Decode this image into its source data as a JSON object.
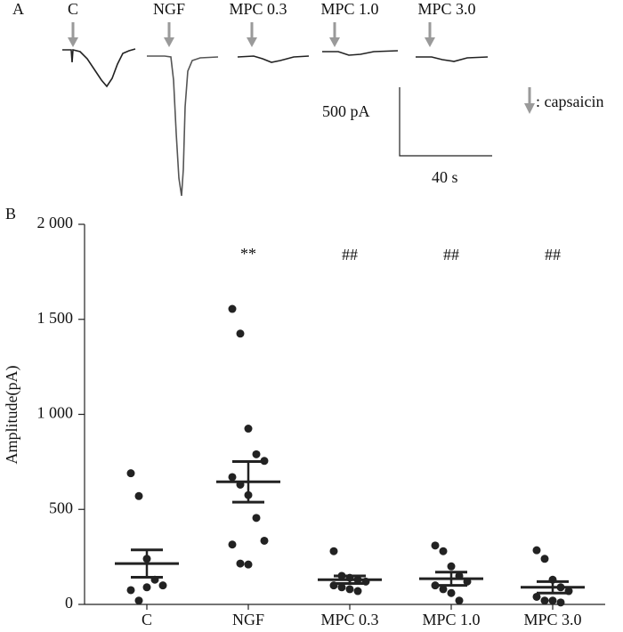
{
  "panel_a": {
    "label": "A",
    "traces": [
      "C",
      "NGF",
      "MPC 0.3",
      "MPC 1.0",
      "MPC 3.0"
    ],
    "scale_y": "500 pA",
    "scale_x": "40 s",
    "legend": ": capsaicin"
  },
  "chart_data": {
    "type": "dotplot",
    "panel_label": "B",
    "y_label": "Amplitude(pA)",
    "categories": [
      "C",
      "NGF",
      "MPC 0.3",
      "MPC 1.0",
      "MPC 3.0"
    ],
    "points": [
      [
        690,
        570,
        240,
        130,
        100,
        75,
        20,
        90
      ],
      [
        1555,
        1425,
        925,
        790,
        755,
        670,
        630,
        575,
        455,
        335,
        315,
        215,
        210
      ],
      [
        280,
        150,
        140,
        130,
        120,
        100,
        90,
        80,
        70
      ],
      [
        310,
        280,
        200,
        150,
        120,
        100,
        80,
        60,
        20
      ],
      [
        285,
        240,
        130,
        90,
        70,
        40,
        20,
        20,
        10
      ]
    ],
    "means": [
      215,
      645,
      130,
      135,
      90
    ],
    "sem": [
      72,
      107,
      20,
      35,
      30
    ],
    "annotations": [
      {
        "category": "NGF",
        "text": "**"
      },
      {
        "category": "MPC 0.3",
        "text": "##"
      },
      {
        "category": "MPC 1.0",
        "text": "##"
      },
      {
        "category": "MPC 3.0",
        "text": "##"
      }
    ],
    "color": "#222222",
    "ylim": [
      0,
      2000
    ],
    "yticks": [
      0,
      500,
      {
        "value": 1000,
        "label": "1 000"
      },
      {
        "value": 1500,
        "label": "1 500"
      },
      {
        "value": 2000,
        "label": "2 000"
      }
    ]
  }
}
